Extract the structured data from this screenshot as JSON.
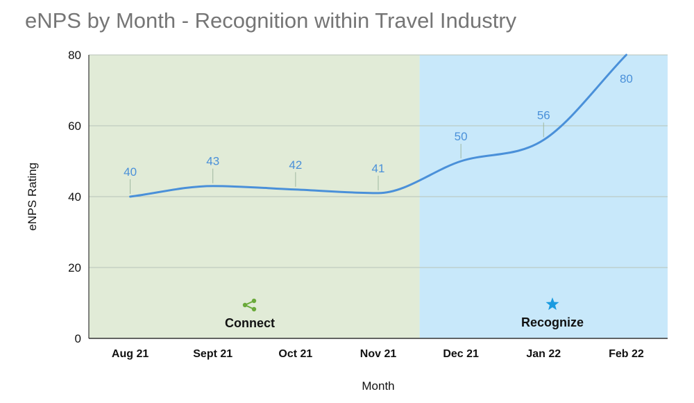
{
  "title": "eNPS by Month - Recognition within Travel Industry",
  "chart_data": {
    "type": "line",
    "title": "eNPS by Month - Recognition within Travel Industry",
    "xlabel": "Month",
    "ylabel": "eNPS Rating",
    "categories": [
      "Aug 21",
      "Sept 21",
      "Oct 21",
      "Nov 21",
      "Dec 21",
      "Jan 22",
      "Feb 22"
    ],
    "series": [
      {
        "values": [
          40,
          43,
          42,
          41,
          50,
          56,
          80
        ],
        "color": "#4a90d9"
      }
    ],
    "ylim": [
      0,
      80
    ],
    "yticks": [
      0,
      20,
      40,
      60,
      80
    ],
    "grid": true,
    "curve": "smooth",
    "data_labels": true,
    "bands": [
      {
        "label": "Connect",
        "icon": "share-icon",
        "color": "#e1ebd7",
        "icon_color": "#6aaa3a"
      },
      {
        "label": "Recognize",
        "icon": "star-icon",
        "color": "#c8e8fa",
        "icon_color": "#1a9be0"
      }
    ]
  }
}
